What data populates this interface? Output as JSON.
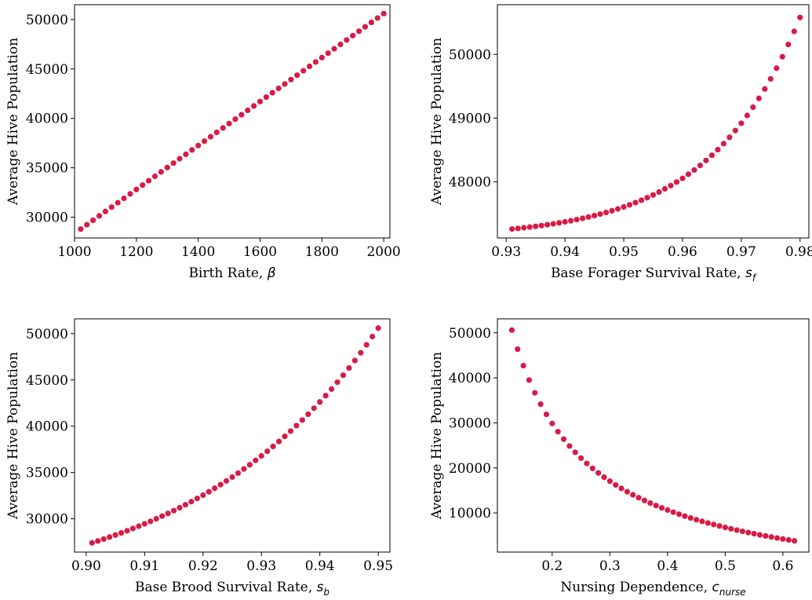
{
  "colors": {
    "marker": "#d81b46",
    "axes": "#000000",
    "background": "#ffffff"
  },
  "chart_data": [
    {
      "type": "scatter",
      "xlabel": {
        "text": "Birth Rate, ",
        "symbol": "β",
        "subscript": ""
      },
      "ylabel": "Average Hive Population",
      "xlim": [
        1000,
        2020
      ],
      "ylim": [
        27900,
        51500
      ],
      "xticks": [
        1000,
        1200,
        1400,
        1600,
        1800,
        2000
      ],
      "yticks": [
        30000,
        35000,
        40000,
        45000,
        50000
      ],
      "x_start": 1020,
      "x_end": 2000,
      "y_start": 28800,
      "y_end": 50600,
      "n_points": 50,
      "shape": "linear",
      "decimals": 0
    },
    {
      "type": "scatter",
      "xlabel": {
        "text": "Base Forager Survival Rate, ",
        "symbol": "s",
        "subscript": "f"
      },
      "ylabel": "Average Hive Population",
      "xlim": [
        0.9285,
        0.9815
      ],
      "ylim": [
        47120,
        50780
      ],
      "xticks": [
        0.93,
        0.94,
        0.95,
        0.96,
        0.97,
        0.98
      ],
      "yticks": [
        48000,
        49000,
        50000
      ],
      "x_start": 0.931,
      "x_end": 0.98,
      "y_start": 47260,
      "y_end": 50580,
      "n_points": 50,
      "shape": "convex",
      "power": 3.2,
      "decimals": 3
    },
    {
      "type": "scatter",
      "xlabel": {
        "text": "Base Brood Survival Rate, ",
        "symbol": "s",
        "subscript": "b"
      },
      "ylabel": "Average Hive Population",
      "xlim": [
        0.898,
        0.952
      ],
      "ylim": [
        26400,
        51600
      ],
      "xticks": [
        0.9,
        0.91,
        0.92,
        0.93,
        0.94,
        0.95
      ],
      "yticks": [
        30000,
        35000,
        40000,
        45000,
        50000
      ],
      "x_start": 0.901,
      "x_end": 0.95,
      "y_start": 27400,
      "y_end": 50600,
      "n_points": 50,
      "shape": "convex",
      "power": 1.55,
      "decimals": 3
    },
    {
      "type": "scatter",
      "xlabel": {
        "text": "Nursing Dependence, ",
        "symbol": "c",
        "subscript": "nurse"
      },
      "ylabel": "Average Hive Population",
      "xlim": [
        0.105,
        0.645
      ],
      "ylim": [
        1300,
        53100
      ],
      "xticks": [
        0.2,
        0.3,
        0.4,
        0.5,
        0.6
      ],
      "yticks": [
        10000,
        20000,
        30000,
        40000,
        50000
      ],
      "x_start": 0.13,
      "x_end": 0.62,
      "y_start": 50600,
      "y_end": 3800,
      "n_points": 50,
      "shape": "decay",
      "decimals": 2
    }
  ]
}
